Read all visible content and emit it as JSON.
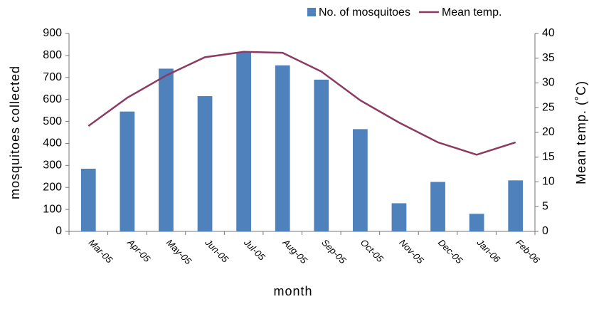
{
  "chart_data": {
    "type": "bar",
    "categories": [
      "Mar-05",
      "Apr-05",
      "May-05",
      "Jun-05",
      "Jul-05",
      "Aug-05",
      "Sep-05",
      "Oct-05",
      "Nov-05",
      "Dec-05",
      "Jan-06",
      "Feb-06"
    ],
    "series": [
      {
        "name": "No. of mosquitoes",
        "type": "bar",
        "color": "#4f81bd",
        "values": [
          285,
          545,
          740,
          615,
          815,
          755,
          690,
          465,
          128,
          225,
          80,
          232
        ]
      },
      {
        "name": "Mean temp.",
        "type": "line",
        "axis": "y2",
        "color": "#8b3a62",
        "values": [
          21.3,
          27,
          31.5,
          35.2,
          36.3,
          36.1,
          32.3,
          26.5,
          22,
          18,
          15.5,
          18
        ]
      }
    ],
    "xlabel": "month",
    "ylabel": "mosquitoes collected",
    "y2label": "Mean temp. (˚C)",
    "ylim": [
      0,
      900
    ],
    "yticks": [
      0,
      100,
      200,
      300,
      400,
      500,
      600,
      700,
      800,
      900
    ],
    "y2lim": [
      0,
      40
    ],
    "y2ticks": [
      0,
      5,
      10,
      15,
      20,
      25,
      30,
      35,
      40
    ],
    "grid": false,
    "legend": "top-right"
  }
}
